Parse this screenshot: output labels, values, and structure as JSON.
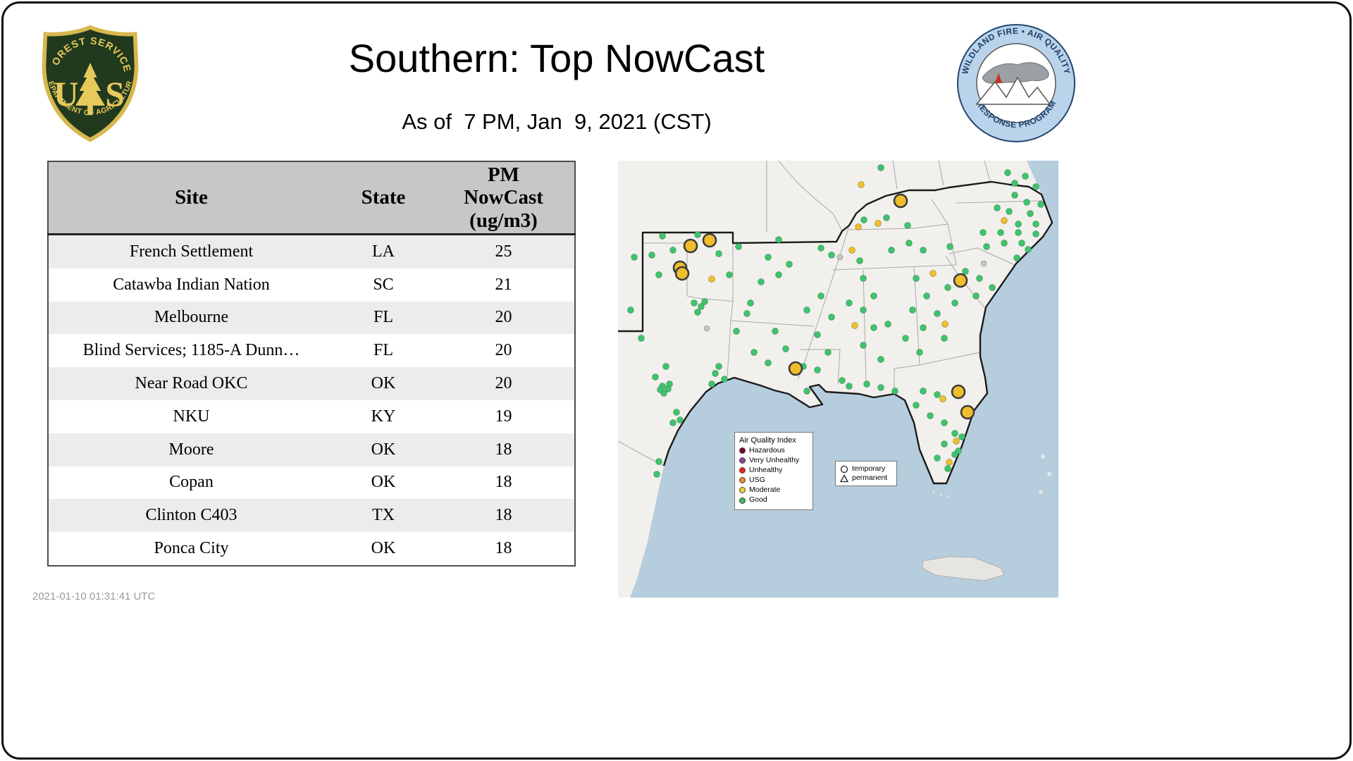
{
  "header": {
    "title": "Southern: Top NowCast",
    "subtitle": "As of  7 PM, Jan  9, 2021 (CST)"
  },
  "logos": {
    "usfs": {
      "top": "FOREST SERVICE",
      "letter_u": "U",
      "letter_s": "S",
      "bottom": "DEPARTMENT OF AGRICULTURE"
    },
    "wfaqrp": {
      "top": "WILDLAND FIRE • AIR QUALITY",
      "bottom": "RESPONSE PROGRAM"
    }
  },
  "table": {
    "headers": [
      "Site",
      "State",
      "PM\nNowCast\n(ug/m3)"
    ],
    "rows": [
      {
        "site": "French Settlement",
        "state": "LA",
        "pm": "25"
      },
      {
        "site": "Catawba Indian Nation",
        "state": "SC",
        "pm": "21"
      },
      {
        "site": "Melbourne",
        "state": "FL",
        "pm": "20"
      },
      {
        "site": "Blind Services; 1185-A Dunn…",
        "state": "FL",
        "pm": "20"
      },
      {
        "site": "Near Road OKC",
        "state": "OK",
        "pm": "20"
      },
      {
        "site": "NKU",
        "state": "KY",
        "pm": "19"
      },
      {
        "site": "Moore",
        "state": "OK",
        "pm": "18"
      },
      {
        "site": "Copan",
        "state": "OK",
        "pm": "18"
      },
      {
        "site": "Clinton C403",
        "state": "TX",
        "pm": "18"
      },
      {
        "site": "Ponca City",
        "state": "OK",
        "pm": "18"
      }
    ]
  },
  "map": {
    "legend": {
      "title": "Air Quality Index",
      "items": [
        {
          "label": "Hazardous",
          "color": "#7e0023"
        },
        {
          "label": "Very Unhealthy",
          "color": "#8f3f97"
        },
        {
          "label": "Unhealthy",
          "color": "#e32526"
        },
        {
          "label": "USG",
          "color": "#ef8733"
        },
        {
          "label": "Moderate",
          "color": "#f2d236"
        },
        {
          "label": "Good",
          "color": "#3dbd5d"
        }
      ]
    },
    "type_legend": {
      "temporary": "temporary",
      "permanent": "permanent"
    },
    "markers": {
      "colors": {
        "good": "#3ec46d",
        "moderate": "#edc22f",
        "no_data": "#c2c7c3",
        "highlight": "#f0bd2c",
        "highlight_stroke": "#3c3c3c"
      },
      "good": [
        [
          349,
          84
        ],
        [
          381,
          81
        ],
        [
          411,
          92
        ],
        [
          563,
          49
        ],
        [
          580,
          59
        ],
        [
          555,
          72
        ],
        [
          585,
          75
        ],
        [
          593,
          90
        ],
        [
          568,
          90
        ],
        [
          538,
          67
        ],
        [
          563,
          32
        ],
        [
          593,
          37
        ],
        [
          578,
          22
        ],
        [
          553,
          17
        ],
        [
          600,
          62
        ],
        [
          373,
          10
        ],
        [
          288,
          124
        ],
        [
          303,
          134
        ],
        [
          343,
          142
        ],
        [
          388,
          127
        ],
        [
          413,
          117
        ],
        [
          433,
          127
        ],
        [
          471,
          122
        ],
        [
          518,
          102
        ],
        [
          543,
          102
        ],
        [
          568,
          102
        ],
        [
          593,
          104
        ],
        [
          573,
          117
        ],
        [
          548,
          117
        ],
        [
          523,
          122
        ],
        [
          582,
          126
        ],
        [
          566,
          138
        ],
        [
          493,
          157
        ],
        [
          513,
          167
        ],
        [
          468,
          180
        ],
        [
          508,
          192
        ],
        [
          531,
          180
        ],
        [
          478,
          202
        ],
        [
          423,
          167
        ],
        [
          438,
          192
        ],
        [
          418,
          212
        ],
        [
          453,
          217
        ],
        [
          433,
          237
        ],
        [
          408,
          252
        ],
        [
          463,
          252
        ],
        [
          383,
          232
        ],
        [
          428,
          272
        ],
        [
          348,
          167
        ],
        [
          363,
          192
        ],
        [
          348,
          212
        ],
        [
          363,
          237
        ],
        [
          348,
          262
        ],
        [
          373,
          282
        ],
        [
          328,
          202
        ],
        [
          288,
          192
        ],
        [
          303,
          222
        ],
        [
          283,
          247
        ],
        [
          298,
          272
        ],
        [
          268,
          212
        ],
        [
          223,
          242
        ],
        [
          238,
          267
        ],
        [
          213,
          287
        ],
        [
          263,
          292
        ],
        [
          283,
          297
        ],
        [
          193,
          272
        ],
        [
          268,
          327
        ],
        [
          228,
          162
        ],
        [
          203,
          172
        ],
        [
          213,
          137
        ],
        [
          243,
          147
        ],
        [
          188,
          202
        ],
        [
          228,
          112
        ],
        [
          63,
          107
        ],
        [
          78,
          127
        ],
        [
          58,
          162
        ],
        [
          143,
          132
        ],
        [
          171,
          122
        ],
        [
          113,
          105
        ],
        [
          48,
          134
        ],
        [
          158,
          162
        ],
        [
          108,
          202
        ],
        [
          118,
          207
        ],
        [
          113,
          215
        ],
        [
          123,
          200
        ],
        [
          68,
          292
        ],
        [
          53,
          307
        ],
        [
          143,
          292
        ],
        [
          138,
          302
        ],
        [
          151,
          310
        ],
        [
          133,
          317
        ],
        [
          88,
          368
        ],
        [
          83,
          357
        ],
        [
          78,
          372
        ],
        [
          168,
          242
        ],
        [
          183,
          217
        ],
        [
          23,
          137
        ],
        [
          18,
          212
        ],
        [
          33,
          252
        ],
        [
          63,
          320
        ],
        [
          71,
          324
        ],
        [
          65,
          330
        ],
        [
          73,
          317
        ],
        [
          60,
          325
        ],
        [
          58,
          427
        ],
        [
          55,
          445
        ],
        [
          433,
          327
        ],
        [
          453,
          332
        ],
        [
          423,
          347
        ],
        [
          443,
          362
        ],
        [
          463,
          372
        ],
        [
          478,
          387
        ],
        [
          463,
          402
        ],
        [
          478,
          417
        ],
        [
          453,
          422
        ],
        [
          468,
          437
        ],
        [
          483,
          412
        ],
        [
          488,
          392
        ],
        [
          353,
          317
        ],
        [
          373,
          322
        ],
        [
          393,
          327
        ],
        [
          318,
          312
        ],
        [
          328,
          320
        ]
      ],
      "moderate": [
        [
          341,
          94
        ],
        [
          369,
          89
        ],
        [
          133,
          168
        ],
        [
          332,
          127
        ],
        [
          447,
          160
        ],
        [
          336,
          234
        ],
        [
          464,
          232
        ],
        [
          461,
          338
        ],
        [
          480,
          398
        ],
        [
          470,
          428
        ],
        [
          548,
          85
        ],
        [
          345,
          34
        ]
      ],
      "no_data": [
        [
          315,
          137
        ],
        [
          126,
          238
        ],
        [
          519,
          146
        ]
      ],
      "highlighted": [
        [
          401,
          57
        ],
        [
          130,
          113
        ],
        [
          103,
          121
        ],
        [
          88,
          152
        ],
        [
          91,
          160
        ],
        [
          486,
          170
        ],
        [
          252,
          295
        ],
        [
          483,
          328
        ],
        [
          496,
          357
        ]
      ]
    }
  },
  "footer": {
    "timestamp": "2021-01-10 01:31:41 UTC"
  }
}
